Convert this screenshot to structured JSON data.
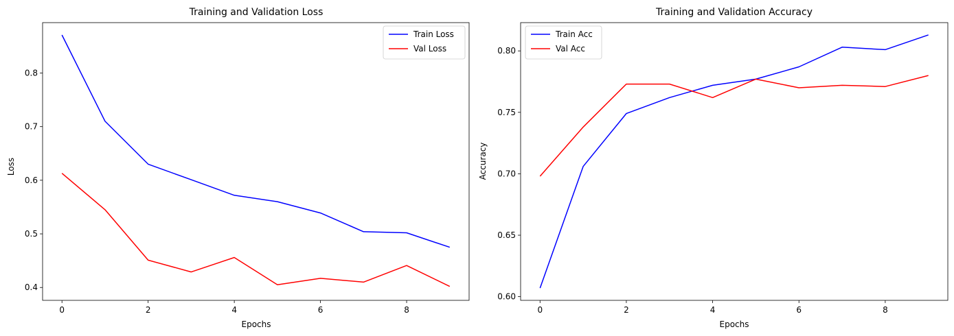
{
  "chart_data": [
    {
      "type": "line",
      "title": "Training and Validation Loss",
      "xlabel": "Epochs",
      "ylabel": "Loss",
      "x": [
        0,
        1,
        2,
        3,
        4,
        5,
        6,
        7,
        8,
        9
      ],
      "xlim": [
        -0.45,
        9.45
      ],
      "ylim": [
        0.376,
        0.894
      ],
      "xticks": [
        0,
        2,
        4,
        6,
        8
      ],
      "yticks": [
        0.4,
        0.5,
        0.6,
        0.7,
        0.8
      ],
      "ytick_labels": [
        "0.4",
        "0.5",
        "0.6",
        "0.7",
        "0.8"
      ],
      "grid": false,
      "legend_position": "top-right",
      "series": [
        {
          "name": "Train Loss",
          "color": "#0000ff",
          "values": [
            0.871,
            0.71,
            0.63,
            0.601,
            0.572,
            0.56,
            0.539,
            0.504,
            0.502,
            0.475
          ]
        },
        {
          "name": "Val Loss",
          "color": "#ff0000",
          "values": [
            0.613,
            0.545,
            0.451,
            0.429,
            0.456,
            0.405,
            0.417,
            0.41,
            0.441,
            0.402
          ]
        }
      ]
    },
    {
      "type": "line",
      "title": "Training and Validation Accuracy",
      "xlabel": "Epochs",
      "ylabel": "Accuracy",
      "x": [
        0,
        1,
        2,
        3,
        4,
        5,
        6,
        7,
        8,
        9
      ],
      "xlim": [
        -0.45,
        9.45
      ],
      "ylim": [
        0.597,
        0.823
      ],
      "xticks": [
        0,
        2,
        4,
        6,
        8
      ],
      "yticks": [
        0.6,
        0.65,
        0.7,
        0.75,
        0.8
      ],
      "ytick_labels": [
        "0.60",
        "0.65",
        "0.70",
        "0.75",
        "0.80"
      ],
      "grid": false,
      "legend_position": "top-left",
      "series": [
        {
          "name": "Train Acc",
          "color": "#0000ff",
          "values": [
            0.607,
            0.706,
            0.749,
            0.762,
            0.772,
            0.777,
            0.787,
            0.803,
            0.801,
            0.813
          ]
        },
        {
          "name": "Val Acc",
          "color": "#ff0000",
          "values": [
            0.698,
            0.738,
            0.773,
            0.773,
            0.762,
            0.777,
            0.77,
            0.772,
            0.771,
            0.78
          ]
        }
      ]
    }
  ]
}
